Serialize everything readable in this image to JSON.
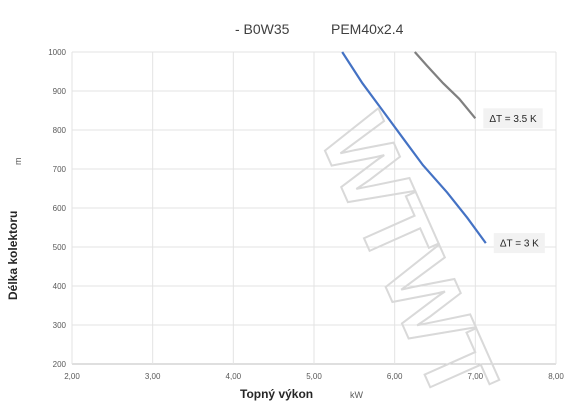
{
  "chart_data": {
    "type": "line",
    "title_parts": [
      "- B0W35",
      "PEM40x2.4"
    ],
    "xlabel": "Topný výkon",
    "xunit": "kW",
    "ylabel": "Délka kolektoru",
    "yunit": "m",
    "xlim": [
      2.0,
      8.0
    ],
    "ylim": [
      200,
      1000
    ],
    "xticks": [
      "2,00",
      "3,00",
      "4,00",
      "5,00",
      "6,00",
      "7,00",
      "8,00"
    ],
    "yticks": [
      "200",
      "300",
      "400",
      "500",
      "600",
      "700",
      "800",
      "900",
      "1000"
    ],
    "grid": true,
    "watermark": "WTWT",
    "series": [
      {
        "name": "ΔT = 3 K",
        "color": "#4472c4",
        "points": [
          [
            5.35,
            1000
          ],
          [
            5.6,
            920
          ],
          [
            5.85,
            850
          ],
          [
            6.1,
            780
          ],
          [
            6.35,
            710
          ],
          [
            6.65,
            640
          ],
          [
            6.9,
            575
          ],
          [
            7.13,
            510
          ]
        ]
      },
      {
        "name": "ΔT = 3.5 K",
        "color": "#808080",
        "points": [
          [
            6.25,
            1000
          ],
          [
            6.4,
            965
          ],
          [
            6.6,
            920
          ],
          [
            6.8,
            880
          ],
          [
            7.0,
            830
          ]
        ]
      }
    ]
  }
}
